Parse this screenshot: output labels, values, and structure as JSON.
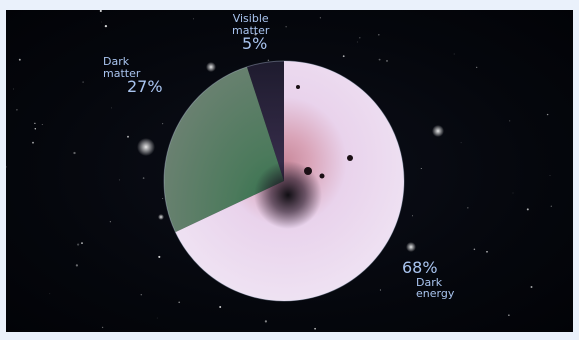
{
  "chart_data": {
    "type": "pie",
    "title": "",
    "slices": [
      {
        "label_lines": [
          "Visible",
          "matter"
        ],
        "value": 5,
        "value_label": "5%",
        "color": "#2a2640"
      },
      {
        "label_lines": [
          "Dark",
          "matter"
        ],
        "value": 27,
        "value_label": "27%",
        "color": "#4f6b56"
      },
      {
        "label_lines": [
          "Dark",
          "energy"
        ],
        "value": 68,
        "value_label": "68%",
        "color": "#e6d4ee"
      }
    ],
    "start_angle_deg": 0,
    "direction": "counter-clockwise",
    "label_color": "#a9c4ef"
  }
}
